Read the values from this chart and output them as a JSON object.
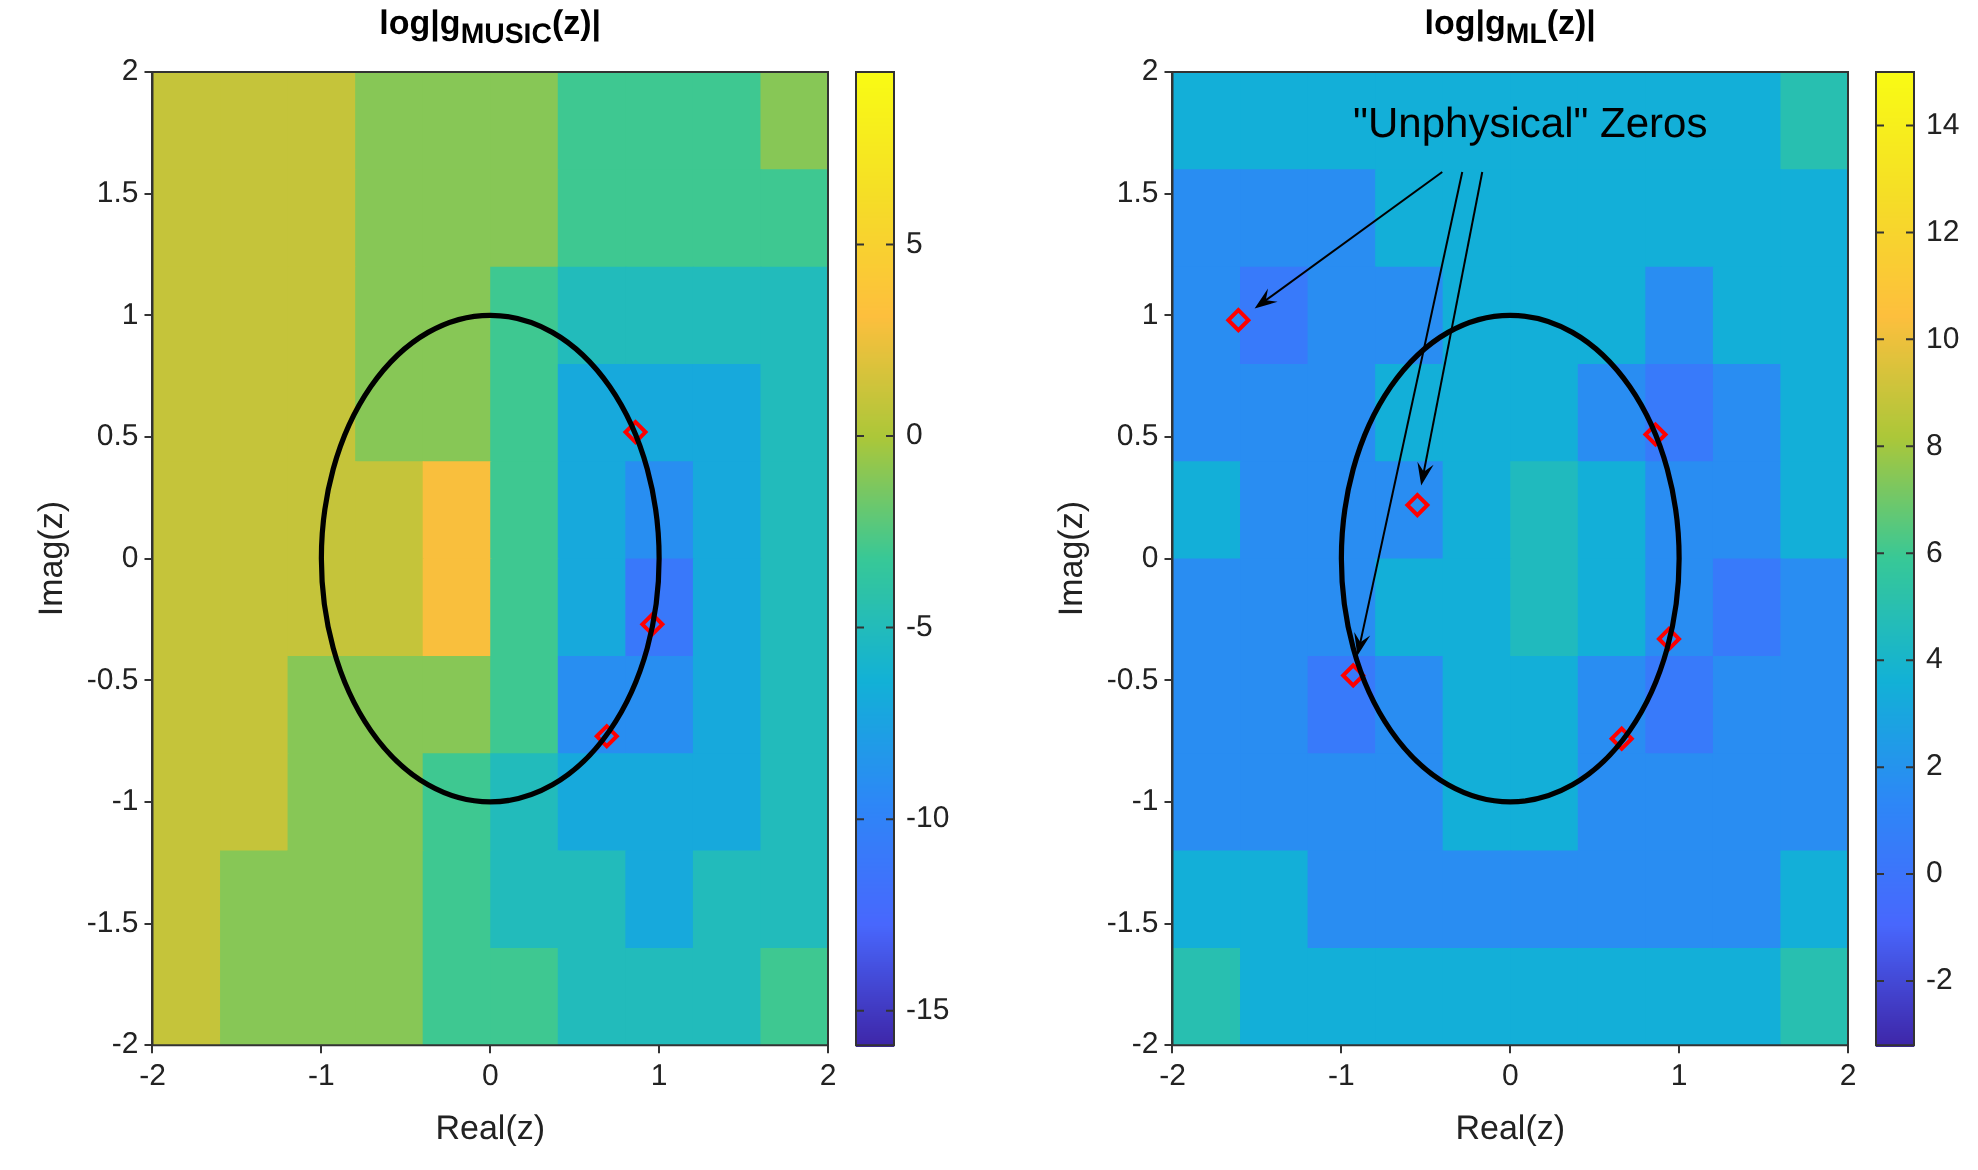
{
  "chart_data": [
    {
      "type": "heatmap",
      "title": "log|g$_{MUSIC}$(z)|",
      "xlabel": "Real(z)",
      "ylabel": "Imag(z)",
      "cells": [
        [
          1,
          1,
          1,
          -1,
          -1,
          -1,
          -3,
          -3,
          -3,
          -1
        ],
        [
          1,
          1,
          1,
          -1,
          -1,
          -1,
          -3,
          -3,
          -3,
          -3
        ],
        [
          1,
          1,
          1,
          -1,
          -1,
          -3,
          -5,
          -5,
          -5,
          -5
        ],
        [
          1,
          1,
          1,
          -1,
          -1,
          -3,
          -7,
          -7,
          -7,
          -5
        ],
        [
          1,
          1,
          1,
          1,
          3,
          -3,
          -7,
          -9,
          -7,
          -5
        ],
        [
          1,
          1,
          1,
          1,
          3,
          -3,
          -7,
          -11,
          -7,
          -5
        ],
        [
          1,
          1,
          -1,
          -1,
          -1,
          -3,
          -9,
          -9,
          -7,
          -5
        ],
        [
          1,
          1,
          -1,
          -1,
          -3,
          -5,
          -7,
          -7,
          -7,
          -5
        ],
        [
          1,
          -1,
          -1,
          -1,
          -3,
          -5,
          -5,
          -7,
          -5,
          -5
        ],
        [
          1,
          -1,
          -1,
          -1,
          -3,
          -3,
          -5,
          -5,
          -5,
          -3
        ]
      ],
      "clim": [
        -15.9,
        9.5
      ],
      "cticks": [
        -15,
        -10,
        -5,
        0,
        5
      ],
      "xlim": [
        -2,
        2
      ],
      "ylim": [
        -2,
        2
      ],
      "xticks": [
        -2,
        -1,
        0,
        1,
        2
      ],
      "yticks": [
        -2,
        -1.5,
        -1,
        -0.5,
        0,
        0.5,
        1,
        1.5,
        2
      ],
      "series": [
        {
          "type": "scatter",
          "color": "#ff0000",
          "marker": "diamond",
          "x": [
            0.86,
            0.96,
            0.69
          ],
          "values": [
            0.52,
            -0.27,
            -0.73
          ]
        }
      ]
    },
    {
      "type": "heatmap",
      "title": "log|g$_{ML}$(z)|",
      "xlabel": "Real(z)",
      "ylabel": "Imag(z)",
      "cells": [
        [
          3.5,
          3.5,
          3.5,
          3.5,
          3.5,
          3.5,
          3.5,
          3.5,
          3.5,
          5
        ],
        [
          1.7,
          1.7,
          1.7,
          3.5,
          3.5,
          3.5,
          3.5,
          3.5,
          3.5,
          3.5
        ],
        [
          1.7,
          0.4,
          1.7,
          1.7,
          3.5,
          3.5,
          3.5,
          1.7,
          3.5,
          3.5
        ],
        [
          1.7,
          1.7,
          1.7,
          3.5,
          3.5,
          3.5,
          1.7,
          0.4,
          1.7,
          3.5
        ],
        [
          3.5,
          1.7,
          1.7,
          1.7,
          3.5,
          4.5,
          3.5,
          1.7,
          1.7,
          3.5
        ],
        [
          1.7,
          1.7,
          1.7,
          3.5,
          3.5,
          4.5,
          3.5,
          1.7,
          0.4,
          1.7
        ],
        [
          1.7,
          1.7,
          0.4,
          1.7,
          3.5,
          3.5,
          1.7,
          0.4,
          1.7,
          1.7
        ],
        [
          1.7,
          1.7,
          1.7,
          1.7,
          3.5,
          3.5,
          1.7,
          1.7,
          1.7,
          1.7
        ],
        [
          3.5,
          3.5,
          1.7,
          1.7,
          1.7,
          1.7,
          1.7,
          1.7,
          1.7,
          3.5
        ],
        [
          5,
          3.5,
          3.5,
          3.5,
          3.5,
          3.5,
          3.5,
          3.5,
          3.5,
          5
        ]
      ],
      "clim": [
        -3.2,
        15
      ],
      "cticks": [
        -2,
        0,
        2,
        4,
        6,
        8,
        10,
        12,
        14
      ],
      "xlim": [
        -2,
        2
      ],
      "ylim": [
        -2,
        2
      ],
      "xticks": [
        -2,
        -1,
        0,
        1,
        2
      ],
      "yticks": [
        -2,
        -1.5,
        -1,
        -0.5,
        0,
        0.5,
        1,
        1.5,
        2
      ],
      "annotations": [
        "\"Unphysical\" Zeros"
      ],
      "series": [
        {
          "type": "scatter",
          "color": "#ff0000",
          "marker": "diamond",
          "x": [
            -1.61,
            -0.93,
            -0.55
          ],
          "values": [
            0.98,
            -0.48,
            0.22
          ]
        },
        {
          "type": "scatter",
          "color": "#ff0000",
          "marker": "diamond",
          "x": [
            0.86,
            0.94,
            0.66
          ],
          "values": [
            0.51,
            -0.33,
            -0.74
          ]
        }
      ]
    }
  ]
}
